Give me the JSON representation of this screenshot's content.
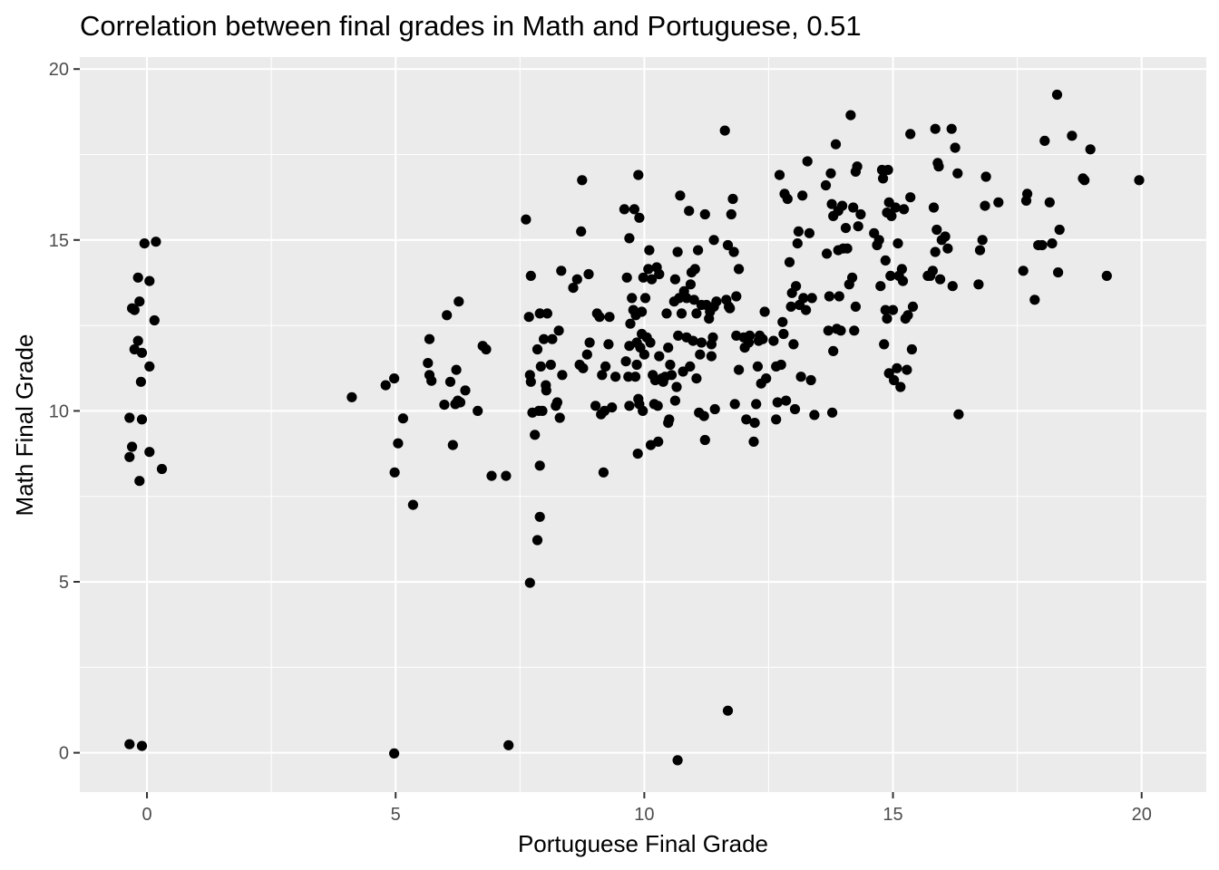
{
  "chart_data": {
    "type": "scatter",
    "title": "Correlation between final grades in Math and Portuguese, 0.51",
    "xlabel": "Portuguese Final Grade",
    "ylabel": "Math Final Grade",
    "xlim": [
      -1.35,
      21.3
    ],
    "ylim": [
      -1.15,
      20.35
    ],
    "x_ticks": [
      0,
      5,
      10,
      15,
      20
    ],
    "y_ticks": [
      0,
      5,
      10,
      15,
      20
    ],
    "x_tick_labels": [
      "0",
      "5",
      "10",
      "15",
      "20"
    ],
    "y_tick_labels": [
      "0",
      "5",
      "10",
      "15",
      "20"
    ],
    "grid": true,
    "point_color": "#000000",
    "panel_color": "#ebebeb",
    "points": [
      [
        -0.35,
        0.25
      ],
      [
        -0.1,
        0.2
      ],
      [
        4.97,
        -0.02
      ],
      [
        7.27,
        0.22
      ],
      [
        10.67,
        -0.22
      ],
      [
        11.68,
        1.23
      ],
      [
        7.7,
        4.97
      ],
      [
        7.85,
        6.22
      ],
      [
        7.9,
        6.9
      ],
      [
        5.35,
        7.25
      ],
      [
        7.9,
        8.4
      ],
      [
        6.93,
        8.1
      ],
      [
        7.22,
        8.1
      ],
      [
        -0.15,
        7.95
      ],
      [
        0.3,
        8.3
      ],
      [
        0.05,
        8.8
      ],
      [
        -0.3,
        8.95
      ],
      [
        -0.35,
        8.65
      ],
      [
        -0.35,
        9.8
      ],
      [
        -0.1,
        9.75
      ],
      [
        -0.12,
        10.85
      ],
      [
        0.05,
        11.3
      ],
      [
        -0.1,
        11.7
      ],
      [
        -0.25,
        11.8
      ],
      [
        -0.18,
        12.05
      ],
      [
        0.15,
        12.65
      ],
      [
        -0.25,
        12.95
      ],
      [
        -0.15,
        13.2
      ],
      [
        -0.3,
        13.0
      ],
      [
        -0.18,
        13.9
      ],
      [
        0.05,
        13.8
      ],
      [
        -0.05,
        14.9
      ],
      [
        0.18,
        14.95
      ],
      [
        4.12,
        10.4
      ],
      [
        4.8,
        10.75
      ],
      [
        4.97,
        10.95
      ],
      [
        5.05,
        9.05
      ],
      [
        5.15,
        9.78
      ],
      [
        4.98,
        8.2
      ],
      [
        5.65,
        11.4
      ],
      [
        5.68,
        11.05
      ],
      [
        5.72,
        10.88
      ],
      [
        5.68,
        12.1
      ],
      [
        5.98,
        10.18
      ],
      [
        6.03,
        12.8
      ],
      [
        6.1,
        10.85
      ],
      [
        6.15,
        9.0
      ],
      [
        6.2,
        10.2
      ],
      [
        6.25,
        10.3
      ],
      [
        6.22,
        11.2
      ],
      [
        6.3,
        10.25
      ],
      [
        6.27,
        13.2
      ],
      [
        6.4,
        10.6
      ],
      [
        6.65,
        10.0
      ],
      [
        6.75,
        11.9
      ],
      [
        6.82,
        11.8
      ],
      [
        7.62,
        15.6
      ],
      [
        7.68,
        12.75
      ],
      [
        7.7,
        11.05
      ],
      [
        7.72,
        13.95
      ],
      [
        7.72,
        10.85
      ],
      [
        7.75,
        9.95
      ],
      [
        7.8,
        9.3
      ],
      [
        7.85,
        11.8
      ],
      [
        7.88,
        10.0
      ],
      [
        7.92,
        11.3
      ],
      [
        7.9,
        12.85
      ],
      [
        7.95,
        10.0
      ],
      [
        7.98,
        12.1
      ],
      [
        8.02,
        10.75
      ],
      [
        8.03,
        10.6
      ],
      [
        8.05,
        12.85
      ],
      [
        8.12,
        11.35
      ],
      [
        8.15,
        12.1
      ],
      [
        8.22,
        10.15
      ],
      [
        8.25,
        10.25
      ],
      [
        8.28,
        12.35
      ],
      [
        8.3,
        9.8
      ],
      [
        8.33,
        14.1
      ],
      [
        8.35,
        11.05
      ],
      [
        8.57,
        13.6
      ],
      [
        8.65,
        13.85
      ],
      [
        8.7,
        11.35
      ],
      [
        8.75,
        16.75
      ],
      [
        8.73,
        15.25
      ],
      [
        8.77,
        11.25
      ],
      [
        8.85,
        11.65
      ],
      [
        8.9,
        12.0
      ],
      [
        8.88,
        14.0
      ],
      [
        9.02,
        10.15
      ],
      [
        9.05,
        12.85
      ],
      [
        9.1,
        12.75
      ],
      [
        9.15,
        11.05
      ],
      [
        9.13,
        9.9
      ],
      [
        9.18,
        8.2
      ],
      [
        9.2,
        10.0
      ],
      [
        9.22,
        11.3
      ],
      [
        9.28,
        11.95
      ],
      [
        9.3,
        12.75
      ],
      [
        9.35,
        10.1
      ],
      [
        9.42,
        11.0
      ],
      [
        9.6,
        15.9
      ],
      [
        9.63,
        11.45
      ],
      [
        9.65,
        13.9
      ],
      [
        9.68,
        11.0
      ],
      [
        9.7,
        10.15
      ],
      [
        9.7,
        15.05
      ],
      [
        9.7,
        11.9
      ],
      [
        9.72,
        12.55
      ],
      [
        9.75,
        13.3
      ],
      [
        9.78,
        12.95
      ],
      [
        9.8,
        15.9
      ],
      [
        9.82,
        11.0
      ],
      [
        9.83,
        12.8
      ],
      [
        9.85,
        12.0
      ],
      [
        9.85,
        11.35
      ],
      [
        9.87,
        8.75
      ],
      [
        9.88,
        10.35
      ],
      [
        9.88,
        16.9
      ],
      [
        9.9,
        15.65
      ],
      [
        9.9,
        10.2
      ],
      [
        9.92,
        11.85
      ],
      [
        9.95,
        12.25
      ],
      [
        9.95,
        12.9
      ],
      [
        9.97,
        10.0
      ],
      [
        9.98,
        13.9
      ],
      [
        10.0,
        11.65
      ],
      [
        10.02,
        13.3
      ],
      [
        10.05,
        12.15
      ],
      [
        10.08,
        14.15
      ],
      [
        10.1,
        14.7
      ],
      [
        10.12,
        12.0
      ],
      [
        10.13,
        9.0
      ],
      [
        10.15,
        13.85
      ],
      [
        10.17,
        11.05
      ],
      [
        10.2,
        10.2
      ],
      [
        10.22,
        10.9
      ],
      [
        10.25,
        14.2
      ],
      [
        10.27,
        10.15
      ],
      [
        10.28,
        9.1
      ],
      [
        10.3,
        14.0
      ],
      [
        10.3,
        11.6
      ],
      [
        10.35,
        10.95
      ],
      [
        10.38,
        10.85
      ],
      [
        10.42,
        11.0
      ],
      [
        10.45,
        12.85
      ],
      [
        10.48,
        11.85
      ],
      [
        10.48,
        9.65
      ],
      [
        10.5,
        9.75
      ],
      [
        10.52,
        11.35
      ],
      [
        10.55,
        11.05
      ],
      [
        10.6,
        13.2
      ],
      [
        10.62,
        13.85
      ],
      [
        10.62,
        10.3
      ],
      [
        10.65,
        10.7
      ],
      [
        10.67,
        14.65
      ],
      [
        10.68,
        12.2
      ],
      [
        10.7,
        13.3
      ],
      [
        10.72,
        16.3
      ],
      [
        10.75,
        12.85
      ],
      [
        10.78,
        11.15
      ],
      [
        10.8,
        13.5
      ],
      [
        10.85,
        12.15
      ],
      [
        10.85,
        13.3
      ],
      [
        10.9,
        15.85
      ],
      [
        10.92,
        11.3
      ],
      [
        10.93,
        13.7
      ],
      [
        10.95,
        14.05
      ],
      [
        10.98,
        12.05
      ],
      [
        11.0,
        13.25
      ],
      [
        11.02,
        14.15
      ],
      [
        11.05,
        12.85
      ],
      [
        11.05,
        10.95
      ],
      [
        11.08,
        14.7
      ],
      [
        11.1,
        9.95
      ],
      [
        11.12,
        11.65
      ],
      [
        11.15,
        13.1
      ],
      [
        11.15,
        12.0
      ],
      [
        11.2,
        9.85
      ],
      [
        11.22,
        15.75
      ],
      [
        11.22,
        9.15
      ],
      [
        11.25,
        13.1
      ],
      [
        11.3,
        12.7
      ],
      [
        11.32,
        12.9
      ],
      [
        11.35,
        11.6
      ],
      [
        11.35,
        11.95
      ],
      [
        11.38,
        12.15
      ],
      [
        11.4,
        13.05
      ],
      [
        11.4,
        15.0
      ],
      [
        11.42,
        10.05
      ],
      [
        11.45,
        13.2
      ],
      [
        11.62,
        18.2
      ],
      [
        11.65,
        13.25
      ],
      [
        11.68,
        14.85
      ],
      [
        11.7,
        13.05
      ],
      [
        11.72,
        13.0
      ],
      [
        11.75,
        15.75
      ],
      [
        11.78,
        16.2
      ],
      [
        11.8,
        14.65
      ],
      [
        11.82,
        10.2
      ],
      [
        11.85,
        12.2
      ],
      [
        11.85,
        13.35
      ],
      [
        11.9,
        11.2
      ],
      [
        11.9,
        14.15
      ],
      [
        12.0,
        12.15
      ],
      [
        12.02,
        11.85
      ],
      [
        12.05,
        9.75
      ],
      [
        12.1,
        12.0
      ],
      [
        12.12,
        12.2
      ],
      [
        12.2,
        9.1
      ],
      [
        12.22,
        9.65
      ],
      [
        12.25,
        10.2
      ],
      [
        12.28,
        11.3
      ],
      [
        12.3,
        12.05
      ],
      [
        12.32,
        12.2
      ],
      [
        12.35,
        10.8
      ],
      [
        12.38,
        12.1
      ],
      [
        12.42,
        12.9
      ],
      [
        12.45,
        10.95
      ],
      [
        12.6,
        12.05
      ],
      [
        12.65,
        11.3
      ],
      [
        12.65,
        9.75
      ],
      [
        12.68,
        10.25
      ],
      [
        12.72,
        16.9
      ],
      [
        12.75,
        11.35
      ],
      [
        12.78,
        12.6
      ],
      [
        12.8,
        12.25
      ],
      [
        12.82,
        16.35
      ],
      [
        12.85,
        10.3
      ],
      [
        12.88,
        16.2
      ],
      [
        12.92,
        14.35
      ],
      [
        12.95,
        13.05
      ],
      [
        12.97,
        13.45
      ],
      [
        13.0,
        11.95
      ],
      [
        13.03,
        10.05
      ],
      [
        13.05,
        13.65
      ],
      [
        13.08,
        14.9
      ],
      [
        13.1,
        15.25
      ],
      [
        13.12,
        13.1
      ],
      [
        13.15,
        11.0
      ],
      [
        13.18,
        16.3
      ],
      [
        13.2,
        13.3
      ],
      [
        13.25,
        12.95
      ],
      [
        13.28,
        17.3
      ],
      [
        13.32,
        15.2
      ],
      [
        13.35,
        10.9
      ],
      [
        13.37,
        13.3
      ],
      [
        13.42,
        9.88
      ],
      [
        13.65,
        16.6
      ],
      [
        13.67,
        14.6
      ],
      [
        13.7,
        12.35
      ],
      [
        13.72,
        13.35
      ],
      [
        13.75,
        16.95
      ],
      [
        13.77,
        16.05
      ],
      [
        13.78,
        9.95
      ],
      [
        13.8,
        11.75
      ],
      [
        13.8,
        15.7
      ],
      [
        13.85,
        17.8
      ],
      [
        13.87,
        12.4
      ],
      [
        13.9,
        14.7
      ],
      [
        13.9,
        15.85
      ],
      [
        13.92,
        13.35
      ],
      [
        13.95,
        12.35
      ],
      [
        13.98,
        16.0
      ],
      [
        14.0,
        14.75
      ],
      [
        14.05,
        15.35
      ],
      [
        14.08,
        14.75
      ],
      [
        14.12,
        13.7
      ],
      [
        14.15,
        18.65
      ],
      [
        14.18,
        13.9
      ],
      [
        14.2,
        15.95
      ],
      [
        14.22,
        12.35
      ],
      [
        14.25,
        17.0
      ],
      [
        14.25,
        13.05
      ],
      [
        14.28,
        17.15
      ],
      [
        14.3,
        15.4
      ],
      [
        14.35,
        15.75
      ],
      [
        14.62,
        15.2
      ],
      [
        14.68,
        14.85
      ],
      [
        14.72,
        15.0
      ],
      [
        14.75,
        13.65
      ],
      [
        14.78,
        17.05
      ],
      [
        14.8,
        16.8
      ],
      [
        14.82,
        11.95
      ],
      [
        14.85,
        12.95
      ],
      [
        14.85,
        14.4
      ],
      [
        14.88,
        12.7
      ],
      [
        14.88,
        15.8
      ],
      [
        14.9,
        17.05
      ],
      [
        14.92,
        16.1
      ],
      [
        14.92,
        11.1
      ],
      [
        14.95,
        13.95
      ],
      [
        14.97,
        15.7
      ],
      [
        15.0,
        12.95
      ],
      [
        15.02,
        10.9
      ],
      [
        15.05,
        15.95
      ],
      [
        15.08,
        11.25
      ],
      [
        15.1,
        14.9
      ],
      [
        15.12,
        13.95
      ],
      [
        15.15,
        10.7
      ],
      [
        15.18,
        14.15
      ],
      [
        15.2,
        13.8
      ],
      [
        15.22,
        15.9
      ],
      [
        15.25,
        12.7
      ],
      [
        15.28,
        11.2
      ],
      [
        15.3,
        12.8
      ],
      [
        15.35,
        16.25
      ],
      [
        15.35,
        18.1
      ],
      [
        15.38,
        11.8
      ],
      [
        15.4,
        13.05
      ],
      [
        15.7,
        13.95
      ],
      [
        15.75,
        13.95
      ],
      [
        15.8,
        14.1
      ],
      [
        15.82,
        15.95
      ],
      [
        15.85,
        14.65
      ],
      [
        15.85,
        18.25
      ],
      [
        15.88,
        15.3
      ],
      [
        15.9,
        17.25
      ],
      [
        15.92,
        17.15
      ],
      [
        15.95,
        13.85
      ],
      [
        15.98,
        15.0
      ],
      [
        16.05,
        15.1
      ],
      [
        16.1,
        14.75
      ],
      [
        16.18,
        18.25
      ],
      [
        16.2,
        13.65
      ],
      [
        16.25,
        17.7
      ],
      [
        16.3,
        16.95
      ],
      [
        16.32,
        9.9
      ],
      [
        16.72,
        13.7
      ],
      [
        16.75,
        14.7
      ],
      [
        16.8,
        15.0
      ],
      [
        16.85,
        16.0
      ],
      [
        16.87,
        16.85
      ],
      [
        17.12,
        16.1
      ],
      [
        17.62,
        14.1
      ],
      [
        17.68,
        16.15
      ],
      [
        17.7,
        16.35
      ],
      [
        17.85,
        13.25
      ],
      [
        17.92,
        14.85
      ],
      [
        18.0,
        14.85
      ],
      [
        18.05,
        17.9
      ],
      [
        18.15,
        16.1
      ],
      [
        18.2,
        14.9
      ],
      [
        18.3,
        19.25
      ],
      [
        18.32,
        14.05
      ],
      [
        18.35,
        15.3
      ],
      [
        18.6,
        18.05
      ],
      [
        18.82,
        16.8
      ],
      [
        18.85,
        16.75
      ],
      [
        18.97,
        17.65
      ],
      [
        19.3,
        13.95
      ],
      [
        19.95,
        16.75
      ]
    ]
  }
}
